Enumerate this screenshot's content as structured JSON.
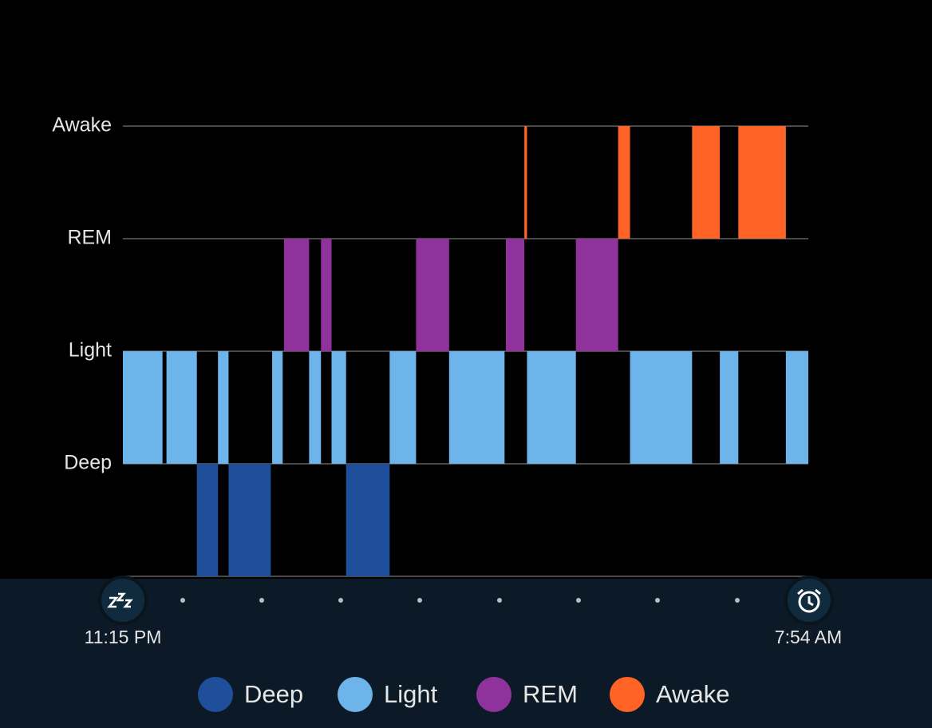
{
  "chart_data": {
    "type": "timeline",
    "stages": [
      {
        "name": "Deep",
        "color": "#1f4e9a"
      },
      {
        "name": "Light",
        "color": "#6cb4ea"
      },
      {
        "name": "REM",
        "color": "#90329c"
      },
      {
        "name": "Awake",
        "color": "#ff6326"
      }
    ],
    "xlim": [
      0,
      519
    ],
    "xticks": [
      {
        "value": 0,
        "label": "11:15 PM"
      },
      {
        "value": 519,
        "label": "7:54 AM"
      }
    ],
    "segments": [
      {
        "stage": "Light",
        "start": 0,
        "end": 30
      },
      {
        "stage": "Light",
        "start": 33,
        "end": 56
      },
      {
        "stage": "Deep",
        "start": 56,
        "end": 72
      },
      {
        "stage": "Light",
        "start": 72,
        "end": 80
      },
      {
        "stage": "Deep",
        "start": 80,
        "end": 112
      },
      {
        "stage": "Light",
        "start": 113,
        "end": 121
      },
      {
        "stage": "REM",
        "start": 122,
        "end": 141
      },
      {
        "stage": "Light",
        "start": 141,
        "end": 150
      },
      {
        "stage": "REM",
        "start": 150,
        "end": 158
      },
      {
        "stage": "Light",
        "start": 158,
        "end": 169
      },
      {
        "stage": "Deep",
        "start": 169,
        "end": 202
      },
      {
        "stage": "Light",
        "start": 202,
        "end": 222
      },
      {
        "stage": "REM",
        "start": 222,
        "end": 247
      },
      {
        "stage": "Light",
        "start": 247,
        "end": 289
      },
      {
        "stage": "REM",
        "start": 290,
        "end": 304
      },
      {
        "stage": "Awake",
        "start": 304,
        "end": 306
      },
      {
        "stage": "Light",
        "start": 306,
        "end": 343
      },
      {
        "stage": "REM",
        "start": 343,
        "end": 375
      },
      {
        "stage": "Awake",
        "start": 375,
        "end": 384
      },
      {
        "stage": "Light",
        "start": 384,
        "end": 431
      },
      {
        "stage": "Awake",
        "start": 431,
        "end": 452
      },
      {
        "stage": "Light",
        "start": 452,
        "end": 466
      },
      {
        "stage": "Awake",
        "start": 466,
        "end": 502
      },
      {
        "stage": "Light",
        "start": 502,
        "end": 519
      }
    ]
  }
}
